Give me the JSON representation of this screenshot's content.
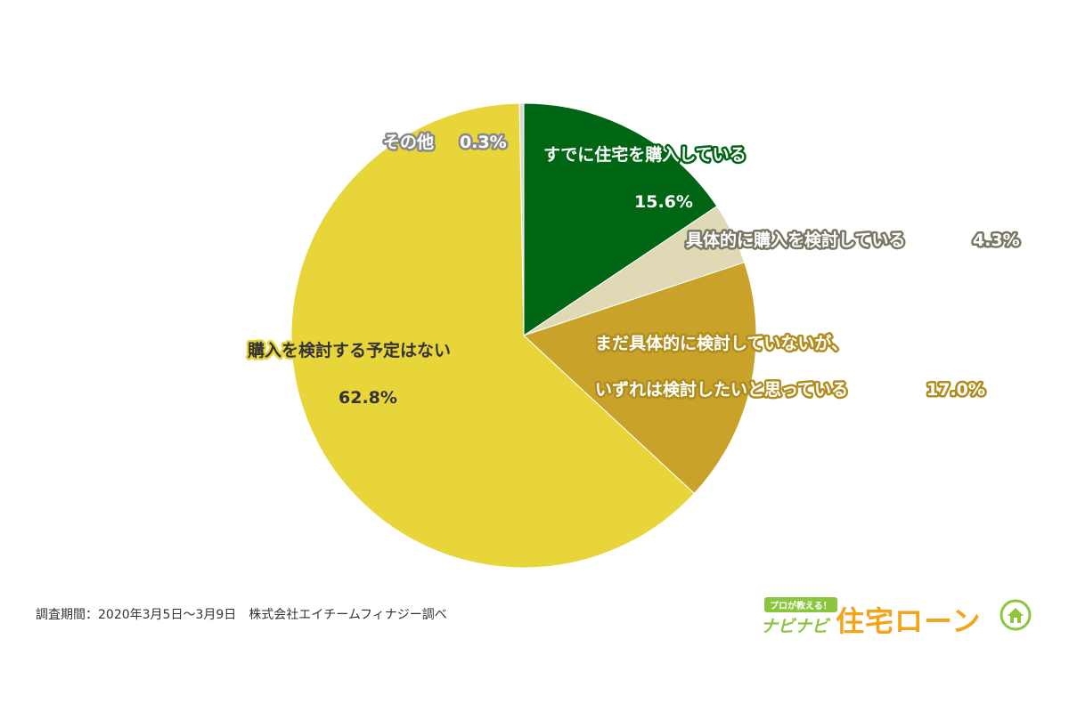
{
  "chart_data": {
    "type": "pie",
    "start_angle_deg": 0,
    "direction": "clockwise",
    "slices": [
      {
        "label": "すでに住宅を購入している",
        "value": 15.6,
        "value_label": "15.6%",
        "color": "#006614",
        "text_color": "#ffffff",
        "outline_color": "#006614"
      },
      {
        "label": "具体的に購入を検討している",
        "value": 4.3,
        "value_label": "4.3%",
        "color": "#dfdab5",
        "text_color": "#ffffff",
        "outline_color": "#7a7664"
      },
      {
        "label_lines": [
          "まだ具体的に検討していないが、",
          "いずれは検討したいと思っている"
        ],
        "value": 17.0,
        "value_label": "17.0%",
        "color": "#c9a22a",
        "text_color": "#ffffff",
        "outline_color": "#b08d1f"
      },
      {
        "label": "購入を検討する予定はない",
        "value": 62.8,
        "value_label": "62.8%",
        "color": "#e7d53a",
        "text_color": "#333333",
        "outline_color": "#e7d53a"
      },
      {
        "label": "その他",
        "value": 0.3,
        "value_label": "0.3%",
        "color": "#d8d8d0",
        "text_color": "#ffffff",
        "outline_color": "#888888"
      }
    ]
  },
  "footer": {
    "note": "調査期間：2020年3月5日～3月9日　株式会社エイチームフィナジー調べ"
  },
  "brand": {
    "tagline": "プロが教える！",
    "sub": "ナビナビ",
    "main": "住宅ローン",
    "icon": "house-icon"
  }
}
